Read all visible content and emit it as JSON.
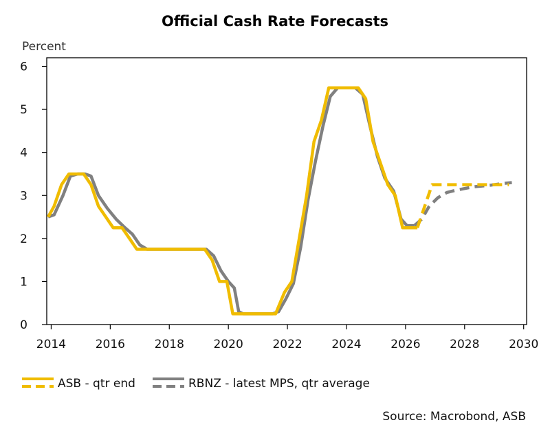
{
  "chart_data": {
    "type": "line",
    "title": "Official Cash Rate Forecasts",
    "ylabel": "Percent",
    "xlabel": "",
    "xlim": [
      2013.85,
      2030.1
    ],
    "ylim": [
      0,
      6.2
    ],
    "x_ticks": [
      2014,
      2016,
      2018,
      2020,
      2022,
      2024,
      2026,
      2028,
      2030
    ],
    "y_ticks": [
      0,
      1,
      2,
      3,
      4,
      5,
      6
    ],
    "grid": false,
    "legend_position": "bottom",
    "source": "Source: Macrobond, ASB",
    "colors": {
      "asb": "#F0BC00",
      "rbnz": "#808080"
    },
    "series": [
      {
        "name": "RBNZ - latest MPS, qtr average",
        "color": "#808080",
        "actual": [
          [
            2013.9,
            2.5
          ],
          [
            2014.1,
            2.55
          ],
          [
            2014.4,
            3.0
          ],
          [
            2014.65,
            3.45
          ],
          [
            2014.9,
            3.5
          ],
          [
            2015.15,
            3.5
          ],
          [
            2015.35,
            3.45
          ],
          [
            2015.6,
            3.0
          ],
          [
            2015.9,
            2.7
          ],
          [
            2016.2,
            2.45
          ],
          [
            2016.5,
            2.25
          ],
          [
            2016.75,
            2.1
          ],
          [
            2017.0,
            1.85
          ],
          [
            2017.25,
            1.75
          ],
          [
            2017.5,
            1.75
          ],
          [
            2018.0,
            1.75
          ],
          [
            2018.5,
            1.75
          ],
          [
            2019.0,
            1.75
          ],
          [
            2019.25,
            1.75
          ],
          [
            2019.5,
            1.6
          ],
          [
            2019.75,
            1.25
          ],
          [
            2020.0,
            1.0
          ],
          [
            2020.2,
            0.85
          ],
          [
            2020.35,
            0.3
          ],
          [
            2020.5,
            0.25
          ],
          [
            2021.0,
            0.25
          ],
          [
            2021.5,
            0.25
          ],
          [
            2021.7,
            0.3
          ],
          [
            2021.95,
            0.6
          ],
          [
            2022.2,
            0.95
          ],
          [
            2022.45,
            1.8
          ],
          [
            2022.7,
            2.9
          ],
          [
            2022.95,
            3.8
          ],
          [
            2023.2,
            4.6
          ],
          [
            2023.45,
            5.3
          ],
          [
            2023.7,
            5.5
          ],
          [
            2024.0,
            5.5
          ],
          [
            2024.3,
            5.5
          ],
          [
            2024.55,
            5.35
          ],
          [
            2024.8,
            4.6
          ],
          [
            2025.05,
            3.9
          ],
          [
            2025.3,
            3.4
          ],
          [
            2025.6,
            3.1
          ],
          [
            2025.85,
            2.45
          ],
          [
            2026.05,
            2.3
          ],
          [
            2026.3,
            2.3
          ]
        ],
        "forecast": [
          [
            2026.3,
            2.3
          ],
          [
            2026.55,
            2.45
          ],
          [
            2026.8,
            2.75
          ],
          [
            2027.1,
            2.95
          ],
          [
            2027.4,
            3.07
          ],
          [
            2027.7,
            3.12
          ],
          [
            2028.0,
            3.16
          ],
          [
            2028.3,
            3.2
          ],
          [
            2028.6,
            3.22
          ],
          [
            2028.9,
            3.24
          ],
          [
            2029.2,
            3.27
          ],
          [
            2029.6,
            3.3
          ]
        ]
      },
      {
        "name": "ASB - qtr end",
        "color": "#F0BC00",
        "actual": [
          [
            2013.9,
            2.5
          ],
          [
            2014.1,
            2.75
          ],
          [
            2014.35,
            3.25
          ],
          [
            2014.6,
            3.5
          ],
          [
            2014.85,
            3.5
          ],
          [
            2015.1,
            3.5
          ],
          [
            2015.35,
            3.25
          ],
          [
            2015.6,
            2.75
          ],
          [
            2015.85,
            2.5
          ],
          [
            2016.1,
            2.25
          ],
          [
            2016.4,
            2.25
          ],
          [
            2016.65,
            2.0
          ],
          [
            2016.9,
            1.75
          ],
          [
            2017.25,
            1.75
          ],
          [
            2017.5,
            1.75
          ],
          [
            2018.0,
            1.75
          ],
          [
            2018.5,
            1.75
          ],
          [
            2019.0,
            1.75
          ],
          [
            2019.2,
            1.75
          ],
          [
            2019.45,
            1.5
          ],
          [
            2019.7,
            1.0
          ],
          [
            2019.95,
            1.0
          ],
          [
            2020.15,
            0.25
          ],
          [
            2020.5,
            0.25
          ],
          [
            2021.0,
            0.25
          ],
          [
            2021.6,
            0.25
          ],
          [
            2021.9,
            0.75
          ],
          [
            2022.15,
            1.0
          ],
          [
            2022.4,
            2.0
          ],
          [
            2022.65,
            3.0
          ],
          [
            2022.9,
            4.25
          ],
          [
            2023.15,
            4.75
          ],
          [
            2023.4,
            5.5
          ],
          [
            2024.0,
            5.5
          ],
          [
            2024.4,
            5.5
          ],
          [
            2024.65,
            5.25
          ],
          [
            2024.9,
            4.25
          ],
          [
            2025.15,
            3.75
          ],
          [
            2025.4,
            3.25
          ],
          [
            2025.65,
            3.0
          ],
          [
            2025.9,
            2.25
          ],
          [
            2026.1,
            2.25
          ],
          [
            2026.4,
            2.25
          ]
        ],
        "forecast": [
          [
            2026.4,
            2.25
          ],
          [
            2026.65,
            2.75
          ],
          [
            2026.9,
            3.25
          ],
          [
            2027.5,
            3.25
          ],
          [
            2028.0,
            3.25
          ],
          [
            2028.5,
            3.25
          ],
          [
            2029.0,
            3.25
          ],
          [
            2029.5,
            3.25
          ]
        ]
      }
    ]
  },
  "legend": {
    "asb_label": "ASB - qtr end",
    "rbnz_label": "RBNZ - latest MPS, qtr average"
  }
}
